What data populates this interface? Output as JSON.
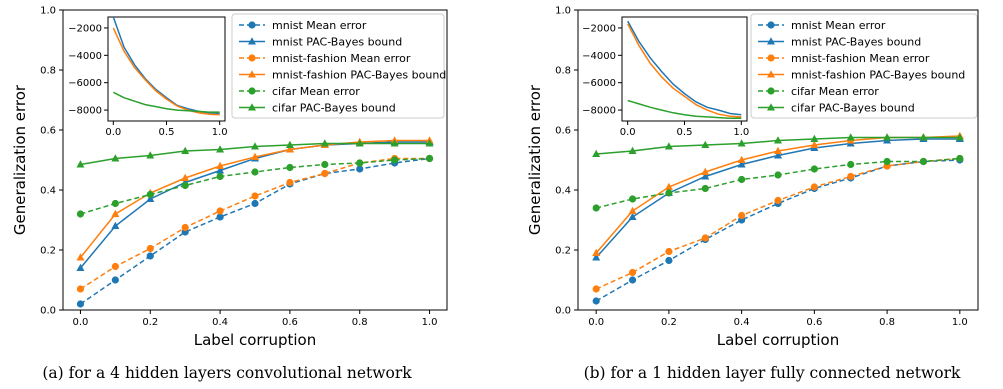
{
  "colors": {
    "mnist": "#1f77b4",
    "fashion": "#ff7f0e",
    "cifar": "#2ca02c",
    "axis": "#000000",
    "legend_border": "#cccccc"
  },
  "chart_data": [
    {
      "type": "line",
      "caption": "(a) for a 4 hidden layers convolutional network",
      "xlabel": "Label corruption",
      "ylabel": "Generalization error",
      "xlim": [
        -0.05,
        1.05
      ],
      "ylim": [
        0.0,
        1.0
      ],
      "xticks": [
        "0.0",
        "0.2",
        "0.4",
        "0.6",
        "0.8",
        "1.0"
      ],
      "yticks": [
        "0.0",
        "0.2",
        "0.4",
        "0.6",
        "0.8",
        "1.0"
      ],
      "legend_position": "top-right",
      "x": [
        0.0,
        0.1,
        0.2,
        0.3,
        0.4,
        0.5,
        0.6,
        0.7,
        0.8,
        0.9,
        1.0
      ],
      "series": [
        {
          "name": "mnist Mean error",
          "color_key": "mnist",
          "style": "dashed",
          "marker": "circle",
          "values": [
            0.02,
            0.1,
            0.18,
            0.26,
            0.31,
            0.355,
            0.42,
            0.455,
            0.47,
            0.49,
            0.505
          ]
        },
        {
          "name": "mnist PAC-Bayes bound",
          "color_key": "mnist",
          "style": "solid",
          "marker": "triangle",
          "values": [
            0.14,
            0.28,
            0.37,
            0.425,
            0.465,
            0.505,
            0.535,
            0.55,
            0.555,
            0.56,
            0.56
          ]
        },
        {
          "name": "mnist-fashion Mean error",
          "color_key": "fashion",
          "style": "dashed",
          "marker": "circle",
          "values": [
            0.07,
            0.145,
            0.205,
            0.275,
            0.33,
            0.38,
            0.425,
            0.455,
            0.49,
            0.505,
            0.505
          ]
        },
        {
          "name": "mnist-fashion PAC-Bayes bound",
          "color_key": "fashion",
          "style": "solid",
          "marker": "triangle",
          "values": [
            0.175,
            0.32,
            0.39,
            0.44,
            0.48,
            0.51,
            0.535,
            0.55,
            0.56,
            0.565,
            0.565
          ]
        },
        {
          "name": "cifar Mean error",
          "color_key": "cifar",
          "style": "dashed",
          "marker": "circle",
          "values": [
            0.32,
            0.355,
            0.385,
            0.415,
            0.445,
            0.46,
            0.475,
            0.485,
            0.49,
            0.5,
            0.505
          ]
        },
        {
          "name": "cifar PAC-Bayes bound",
          "color_key": "cifar",
          "style": "solid",
          "marker": "triangle",
          "values": [
            0.485,
            0.505,
            0.515,
            0.53,
            0.535,
            0.545,
            0.55,
            0.555,
            0.555,
            0.555,
            0.555
          ]
        }
      ],
      "inset": {
        "xlim": [
          -0.05,
          1.05
        ],
        "ylim": [
          -8800,
          -1200
        ],
        "xticks": [
          "0.0",
          "0.5",
          "1.0"
        ],
        "yticks": [
          "-2000",
          "-4000",
          "-6000",
          "-8000"
        ],
        "x": [
          0.0,
          0.1,
          0.2,
          0.3,
          0.4,
          0.5,
          0.6,
          0.7,
          0.8,
          0.9,
          1.0
        ],
        "series": [
          {
            "color_key": "mnist",
            "values": [
              -1200,
              -3400,
              -4700,
              -5700,
              -6500,
              -7100,
              -7650,
              -7900,
              -8100,
              -8200,
              -8250
            ]
          },
          {
            "color_key": "fashion",
            "values": [
              -2000,
              -3700,
              -4900,
              -5800,
              -6600,
              -7200,
              -7700,
              -8000,
              -8200,
              -8300,
              -8350
            ]
          },
          {
            "color_key": "cifar",
            "values": [
              -6700,
              -7100,
              -7350,
              -7600,
              -7750,
              -7900,
              -8000,
              -8050,
              -8100,
              -8150,
              -8150
            ]
          }
        ]
      }
    },
    {
      "type": "line",
      "caption": "(b) for a 1 hidden layer fully connected network",
      "xlabel": "Label corruption",
      "ylabel": "Generalization error",
      "xlim": [
        -0.05,
        1.05
      ],
      "ylim": [
        0.0,
        1.0
      ],
      "xticks": [
        "0.0",
        "0.2",
        "0.4",
        "0.6",
        "0.8",
        "1.0"
      ],
      "yticks": [
        "0.0",
        "0.2",
        "0.4",
        "0.6",
        "0.8",
        "1.0"
      ],
      "legend_position": "top-right",
      "x": [
        0.0,
        0.1,
        0.2,
        0.3,
        0.4,
        0.5,
        0.6,
        0.7,
        0.8,
        0.9,
        1.0
      ],
      "series": [
        {
          "name": "mnist Mean error",
          "color_key": "mnist",
          "style": "dashed",
          "marker": "circle",
          "values": [
            0.03,
            0.1,
            0.165,
            0.235,
            0.3,
            0.355,
            0.405,
            0.44,
            0.48,
            0.495,
            0.5
          ]
        },
        {
          "name": "mnist PAC-Bayes bound",
          "color_key": "mnist",
          "style": "solid",
          "marker": "triangle",
          "values": [
            0.175,
            0.31,
            0.39,
            0.445,
            0.485,
            0.515,
            0.54,
            0.555,
            0.565,
            0.57,
            0.57
          ]
        },
        {
          "name": "mnist-fashion Mean error",
          "color_key": "fashion",
          "style": "dashed",
          "marker": "circle",
          "values": [
            0.07,
            0.125,
            0.195,
            0.24,
            0.315,
            0.365,
            0.41,
            0.445,
            0.48,
            0.495,
            0.505
          ]
        },
        {
          "name": "mnist-fashion PAC-Bayes bound",
          "color_key": "fashion",
          "style": "solid",
          "marker": "triangle",
          "values": [
            0.19,
            0.33,
            0.41,
            0.46,
            0.5,
            0.53,
            0.55,
            0.565,
            0.575,
            0.575,
            0.58
          ]
        },
        {
          "name": "cifar Mean error",
          "color_key": "cifar",
          "style": "dashed",
          "marker": "circle",
          "values": [
            0.34,
            0.37,
            0.39,
            0.405,
            0.435,
            0.45,
            0.47,
            0.485,
            0.495,
            0.495,
            0.505
          ]
        },
        {
          "name": "cifar PAC-Bayes bound",
          "color_key": "cifar",
          "style": "solid",
          "marker": "triangle",
          "values": [
            0.52,
            0.53,
            0.545,
            0.55,
            0.555,
            0.565,
            0.57,
            0.575,
            0.575,
            0.575,
            0.575
          ]
        }
      ],
      "inset": {
        "xlim": [
          -0.05,
          1.05
        ],
        "ylim": [
          -8800,
          -1200
        ],
        "xticks": [
          "0.0",
          "0.5",
          "1.0"
        ],
        "yticks": [
          "-2000",
          "-4000",
          "-6000",
          "-8000"
        ],
        "x": [
          0.0,
          0.1,
          0.2,
          0.3,
          0.4,
          0.5,
          0.6,
          0.7,
          0.8,
          0.9,
          1.0
        ],
        "series": [
          {
            "color_key": "mnist",
            "values": [
              -1500,
              -3000,
              -4200,
              -5200,
              -6100,
              -6800,
              -7400,
              -7800,
              -8000,
              -8250,
              -8350
            ]
          },
          {
            "color_key": "fashion",
            "values": [
              -1700,
              -3300,
              -4600,
              -5600,
              -6400,
              -7000,
              -7600,
              -8000,
              -8300,
              -8450,
              -8500
            ]
          },
          {
            "color_key": "cifar",
            "values": [
              -7300,
              -7550,
              -7800,
              -8000,
              -8200,
              -8350,
              -8450,
              -8500,
              -8550,
              -8600,
              -8600
            ]
          }
        ]
      }
    }
  ]
}
